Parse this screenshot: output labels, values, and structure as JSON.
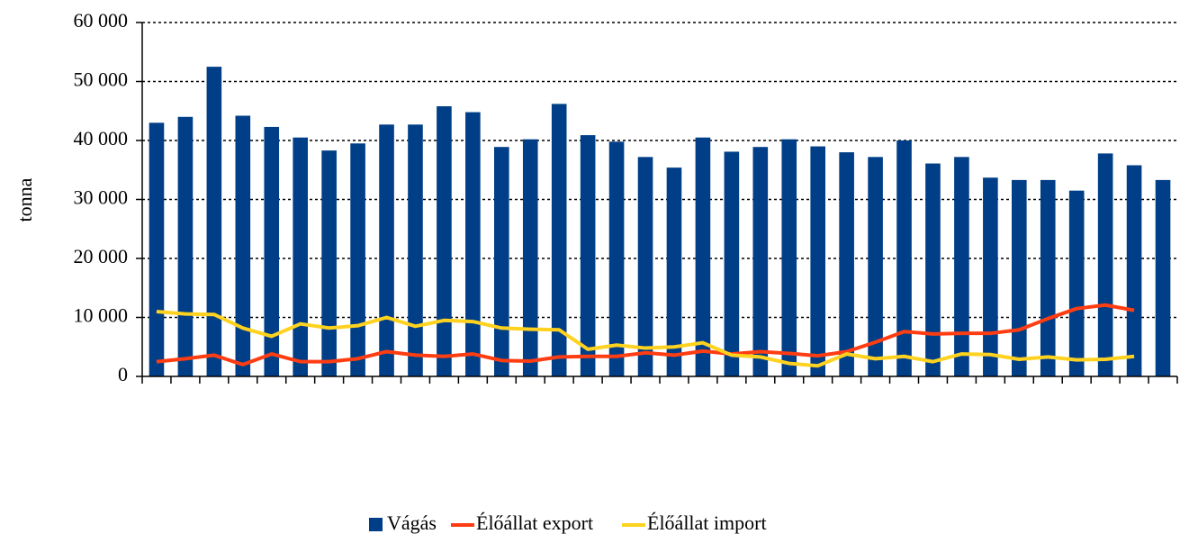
{
  "chart_data": {
    "type": "bar_line",
    "y_label": "tonna",
    "categories": [
      null,
      null,
      null,
      null,
      null,
      null,
      null,
      null,
      null,
      null,
      null,
      null,
      null,
      null,
      null,
      null,
      null,
      null,
      null,
      null,
      null,
      null,
      null,
      null,
      null,
      null,
      null,
      null,
      null,
      null,
      null,
      null,
      null,
      null,
      null,
      null
    ],
    "series": [
      {
        "name": "Vágás",
        "type": "bar",
        "color": "#003f87",
        "values": [
          43000,
          44000,
          52500,
          44200,
          42300,
          40500,
          38300,
          39500,
          42700,
          42700,
          45800,
          44800,
          38900,
          40200,
          46200,
          40900,
          39800,
          37200,
          35400,
          40500,
          38100,
          38900,
          40200,
          39000,
          38000,
          37200,
          40000,
          36100,
          37200,
          33700,
          33300,
          33300,
          31500,
          37800,
          35800,
          33300
        ]
      },
      {
        "name": "Élőállat export",
        "type": "line",
        "color": "#ff3d12",
        "values": [
          2500,
          3000,
          3600,
          2000,
          3800,
          2500,
          2500,
          3000,
          4200,
          3600,
          3400,
          3800,
          2700,
          2600,
          3300,
          3400,
          3400,
          4000,
          3600,
          4300,
          3800,
          4200,
          3900,
          3500,
          4200,
          5800,
          7600,
          7200,
          7300,
          7300,
          7900,
          9800,
          11500,
          12100,
          11200,
          null
        ]
      },
      {
        "name": "Élőállat import",
        "type": "line",
        "color": "#ffd21f",
        "values": [
          11000,
          10600,
          10500,
          8200,
          6800,
          8900,
          8200,
          8600,
          10000,
          8500,
          9500,
          9300,
          8200,
          8000,
          7900,
          4600,
          5300,
          4800,
          5000,
          5700,
          3600,
          3300,
          2200,
          1800,
          3800,
          3000,
          3400,
          2500,
          3800,
          3700,
          2900,
          3300,
          2800,
          2900,
          3400,
          null
        ]
      }
    ],
    "ylim": [
      0,
      60000
    ],
    "yticks": [
      {
        "value": 0,
        "label": "0"
      },
      {
        "value": 10000,
        "label": "10 000"
      },
      {
        "value": 20000,
        "label": "20 000"
      },
      {
        "value": 30000,
        "label": "30 000"
      },
      {
        "value": 40000,
        "label": "40 000"
      },
      {
        "value": 50000,
        "label": "50 000"
      },
      {
        "value": 60000,
        "label": "60 000"
      }
    ],
    "grid": true,
    "legend": "bottom"
  }
}
